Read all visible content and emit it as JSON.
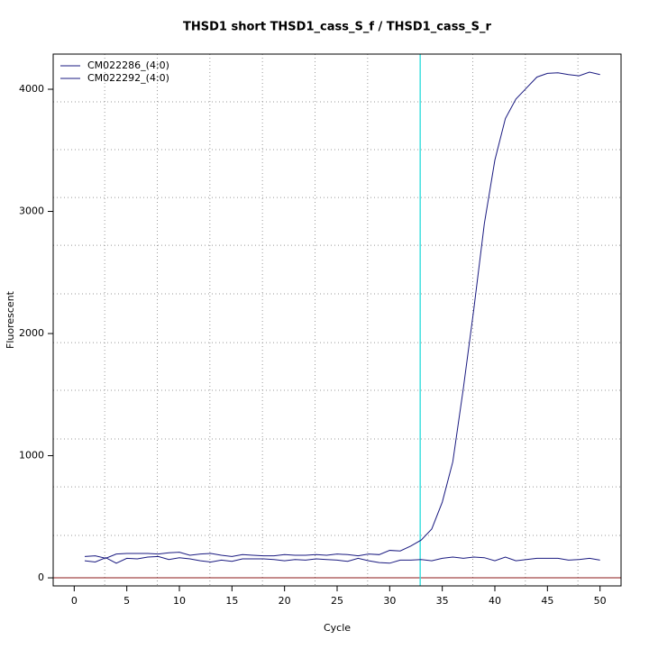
{
  "chart_data": {
    "type": "line",
    "title": "THSD1 short THSD1_cass_S_f / THSD1_cass_S_r",
    "x_label": "Cycle",
    "y_label": "Fluorescent",
    "x": [
      1,
      2,
      3,
      4,
      5,
      6,
      7,
      8,
      9,
      10,
      11,
      12,
      13,
      14,
      15,
      16,
      17,
      18,
      19,
      20,
      21,
      22,
      23,
      24,
      25,
      26,
      27,
      28,
      29,
      30,
      31,
      32,
      33,
      34,
      35,
      36,
      37,
      38,
      39,
      40,
      41,
      42,
      43,
      44,
      45,
      46,
      47,
      48,
      49,
      50
    ],
    "series": [
      {
        "name": "CM022286_(4:0)",
        "color": "#1a1a80",
        "values": [
          175,
          180,
          160,
          195,
          200,
          200,
          200,
          195,
          205,
          210,
          185,
          195,
          200,
          185,
          175,
          190,
          185,
          180,
          180,
          190,
          185,
          185,
          190,
          185,
          195,
          190,
          180,
          195,
          190,
          225,
          220,
          260,
          310,
          400,
          620,
          950,
          1550,
          2200,
          2900,
          3420,
          3760,
          3920,
          4010,
          4100,
          4130,
          4135,
          4120,
          4110,
          4140,
          4120
        ]
      },
      {
        "name": "CM022292_(4:0)",
        "color": "#1a1a80",
        "values": [
          140,
          130,
          165,
          120,
          160,
          155,
          170,
          175,
          150,
          165,
          155,
          140,
          130,
          145,
          135,
          155,
          155,
          155,
          150,
          140,
          150,
          145,
          155,
          150,
          145,
          135,
          160,
          140,
          125,
          120,
          145,
          145,
          150,
          140,
          160,
          170,
          160,
          170,
          165,
          140,
          170,
          140,
          150,
          160,
          160,
          160,
          145,
          150,
          160,
          145
        ]
      }
    ],
    "xlim": [
      -2,
      52
    ],
    "ylim": [
      -66,
      4288
    ],
    "xticks": [
      0,
      5,
      10,
      15,
      20,
      25,
      30,
      35,
      40,
      45,
      50
    ],
    "yticks": [
      0,
      1000,
      2000,
      3000,
      4000
    ],
    "grid": true,
    "xgrid": [
      2.9,
      7.9,
      12.9,
      17.9,
      22.9,
      27.9,
      32.9,
      37.9,
      42.9,
      47.9
    ],
    "ygrid": [
      347,
      745,
      1137,
      1535,
      1926,
      2325,
      2723,
      3114,
      3506,
      3897
    ],
    "threshold_cycle": 32.9,
    "threshold_color": "#40e0e0",
    "baseline": 0,
    "baseline_color": "#8b1a1a",
    "legend": "top-left"
  }
}
